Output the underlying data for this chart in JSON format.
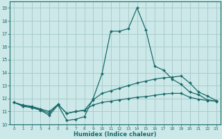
{
  "xlabel": "Humidex (Indice chaleur)",
  "background_color": "#cce8e8",
  "grid_color": "#aacccc",
  "line_color": "#1a6b6b",
  "xlim": [
    -0.5,
    23.5
  ],
  "ylim": [
    10.0,
    19.5
  ],
  "yticks": [
    10,
    11,
    12,
    13,
    14,
    15,
    16,
    17,
    18,
    19
  ],
  "xticks": [
    0,
    1,
    2,
    3,
    4,
    5,
    6,
    7,
    8,
    9,
    10,
    11,
    12,
    13,
    14,
    15,
    16,
    17,
    18,
    19,
    20,
    21,
    22,
    23
  ],
  "curve_top": [
    11.7,
    11.4,
    11.3,
    11.1,
    10.7,
    11.5,
    10.3,
    10.4,
    10.6,
    12.0,
    13.9,
    17.2,
    17.2,
    17.4,
    19.0,
    17.3,
    14.5,
    14.2,
    13.5,
    13.1,
    12.5,
    12.3,
    11.9,
    11.8
  ],
  "curve_mid": [
    11.7,
    11.5,
    11.4,
    11.2,
    11.0,
    11.55,
    10.85,
    11.0,
    11.1,
    11.9,
    12.4,
    12.6,
    12.8,
    13.0,
    13.2,
    13.35,
    13.5,
    13.6,
    13.65,
    13.75,
    13.2,
    12.5,
    12.2,
    11.85
  ],
  "curve_bot": [
    11.7,
    11.45,
    11.35,
    11.15,
    10.85,
    11.55,
    10.85,
    11.0,
    11.1,
    11.5,
    11.7,
    11.8,
    11.9,
    12.0,
    12.1,
    12.15,
    12.25,
    12.35,
    12.4,
    12.4,
    12.1,
    11.95,
    11.85,
    11.8
  ]
}
